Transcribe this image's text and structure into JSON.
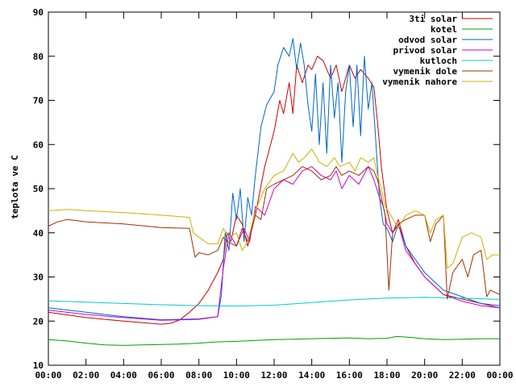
{
  "chart_data": {
    "type": "line",
    "title": "",
    "xlabel": "",
    "ylabel": "teplota ve C",
    "ylim": [
      10,
      90
    ],
    "yticks": [
      10,
      20,
      30,
      40,
      50,
      60,
      70,
      80,
      90
    ],
    "xlim": [
      0,
      24
    ],
    "xticks": [
      {
        "h": 0,
        "label": "00:00"
      },
      {
        "h": 2,
        "label": "02:00"
      },
      {
        "h": 4,
        "label": "04:00"
      },
      {
        "h": 6,
        "label": "06:00"
      },
      {
        "h": 8,
        "label": "08:00"
      },
      {
        "h": 10,
        "label": "10:00"
      },
      {
        "h": 12,
        "label": "12:00"
      },
      {
        "h": 14,
        "label": "14:00"
      },
      {
        "h": 16,
        "label": "16:00"
      },
      {
        "h": 18,
        "label": "18:00"
      },
      {
        "h": 20,
        "label": "20:00"
      },
      {
        "h": 22,
        "label": "22:00"
      },
      {
        "h": 24,
        "label": "00:00"
      }
    ],
    "grid": false,
    "legend_position": "top-right",
    "series": [
      {
        "name": "3ti solar",
        "color": "#cc0000",
        "points": [
          [
            0,
            22
          ],
          [
            2,
            20.8
          ],
          [
            4,
            20
          ],
          [
            6,
            19.3
          ],
          [
            6.5,
            19.5
          ],
          [
            7,
            20.3
          ],
          [
            7.5,
            22
          ],
          [
            8,
            24
          ],
          [
            8.5,
            27
          ],
          [
            9,
            31
          ],
          [
            9.3,
            34
          ],
          [
            9.5,
            40
          ],
          [
            9.7,
            38
          ],
          [
            10,
            44
          ],
          [
            10.3,
            42
          ],
          [
            10.6,
            37
          ],
          [
            11,
            44
          ],
          [
            11.5,
            55
          ],
          [
            12,
            63
          ],
          [
            12.3,
            70
          ],
          [
            12.5,
            67
          ],
          [
            12.8,
            74
          ],
          [
            13,
            67
          ],
          [
            13.2,
            78
          ],
          [
            13.5,
            74
          ],
          [
            13.8,
            78
          ],
          [
            14,
            77
          ],
          [
            14.3,
            80
          ],
          [
            14.6,
            79
          ],
          [
            15,
            75
          ],
          [
            15.3,
            78
          ],
          [
            15.6,
            72
          ],
          [
            16,
            78
          ],
          [
            16.3,
            75
          ],
          [
            16.6,
            77
          ],
          [
            17,
            75
          ],
          [
            17.3,
            73
          ],
          [
            17.5,
            65
          ],
          [
            17.7,
            55
          ],
          [
            18,
            45
          ],
          [
            18.3,
            40
          ],
          [
            18.6,
            43
          ],
          [
            19,
            37
          ],
          [
            19.5,
            33
          ],
          [
            20,
            30
          ],
          [
            20.5,
            28
          ],
          [
            21,
            26
          ],
          [
            22,
            25
          ],
          [
            23,
            24
          ],
          [
            24,
            23
          ]
        ]
      },
      {
        "name": "kotel",
        "color": "#00a000",
        "points": [
          [
            0,
            15.8
          ],
          [
            1,
            15.5
          ],
          [
            2,
            15
          ],
          [
            3,
            14.6
          ],
          [
            4,
            14.5
          ],
          [
            5,
            14.6
          ],
          [
            6,
            14.7
          ],
          [
            7,
            14.8
          ],
          [
            8,
            15
          ],
          [
            9,
            15.3
          ],
          [
            10,
            15.4
          ],
          [
            11,
            15.6
          ],
          [
            12,
            15.8
          ],
          [
            13,
            15.9
          ],
          [
            14,
            16
          ],
          [
            15,
            16.1
          ],
          [
            16,
            16.2
          ],
          [
            17,
            16
          ],
          [
            18,
            16.1
          ],
          [
            18.5,
            16.5
          ],
          [
            19,
            16.4
          ],
          [
            20,
            16
          ],
          [
            21,
            15.8
          ],
          [
            22,
            15.9
          ],
          [
            23,
            16
          ],
          [
            24,
            16
          ]
        ]
      },
      {
        "name": "odvod solar",
        "color": "#0066cc",
        "points": [
          [
            0,
            23
          ],
          [
            2,
            22
          ],
          [
            4,
            21
          ],
          [
            6,
            20.3
          ],
          [
            8,
            20.5
          ],
          [
            9,
            21
          ],
          [
            9.2,
            26
          ],
          [
            9.4,
            40
          ],
          [
            9.6,
            36
          ],
          [
            9.8,
            49
          ],
          [
            10,
            43
          ],
          [
            10.2,
            50
          ],
          [
            10.4,
            38
          ],
          [
            10.6,
            48
          ],
          [
            10.8,
            44
          ],
          [
            11,
            53
          ],
          [
            11.3,
            64
          ],
          [
            11.6,
            69
          ],
          [
            12,
            72
          ],
          [
            12.2,
            78
          ],
          [
            12.5,
            82
          ],
          [
            12.8,
            80
          ],
          [
            13,
            84
          ],
          [
            13.2,
            77
          ],
          [
            13.4,
            83
          ],
          [
            13.6,
            78
          ],
          [
            13.8,
            69
          ],
          [
            14,
            63
          ],
          [
            14.2,
            76
          ],
          [
            14.4,
            60
          ],
          [
            14.6,
            74
          ],
          [
            14.8,
            58
          ],
          [
            15,
            78
          ],
          [
            15.2,
            66
          ],
          [
            15.4,
            74
          ],
          [
            15.6,
            56
          ],
          [
            15.8,
            72
          ],
          [
            16,
            78
          ],
          [
            16.2,
            64
          ],
          [
            16.4,
            78
          ],
          [
            16.6,
            62
          ],
          [
            16.8,
            80
          ],
          [
            17,
            68
          ],
          [
            17.2,
            74
          ],
          [
            17.4,
            61
          ],
          [
            17.6,
            48
          ],
          [
            17.8,
            42
          ],
          [
            18,
            41
          ],
          [
            18.3,
            38
          ],
          [
            18.6,
            42
          ],
          [
            19,
            37
          ],
          [
            19.5,
            34
          ],
          [
            20,
            31
          ],
          [
            20.5,
            29
          ],
          [
            21,
            27
          ],
          [
            22,
            25.5
          ],
          [
            23,
            24
          ],
          [
            24,
            23.5
          ]
        ]
      },
      {
        "name": "privod solar",
        "color": "#cc00cc",
        "points": [
          [
            0,
            22.5
          ],
          [
            2,
            21.5
          ],
          [
            4,
            20.8
          ],
          [
            6,
            20.2
          ],
          [
            8,
            20.4
          ],
          [
            9,
            21
          ],
          [
            9.3,
            32
          ],
          [
            9.6,
            40
          ],
          [
            10,
            37
          ],
          [
            10.4,
            41
          ],
          [
            10.7,
            38
          ],
          [
            11,
            46
          ],
          [
            11.5,
            44
          ],
          [
            12,
            50
          ],
          [
            12.5,
            52
          ],
          [
            13,
            51
          ],
          [
            13.5,
            54
          ],
          [
            14,
            55
          ],
          [
            14.5,
            53
          ],
          [
            15,
            52
          ],
          [
            15.3,
            54
          ],
          [
            15.6,
            50
          ],
          [
            16,
            53
          ],
          [
            16.5,
            51
          ],
          [
            17,
            55
          ],
          [
            17.3,
            52
          ],
          [
            17.6,
            48
          ],
          [
            17.8,
            46
          ],
          [
            18,
            42
          ],
          [
            18.3,
            40
          ],
          [
            18.6,
            42
          ],
          [
            19,
            36
          ],
          [
            19.5,
            33
          ],
          [
            20,
            30
          ],
          [
            20.5,
            28
          ],
          [
            21,
            26
          ],
          [
            22,
            24.5
          ],
          [
            23,
            23.5
          ],
          [
            24,
            23
          ]
        ]
      },
      {
        "name": "kutloch",
        "color": "#00cccc",
        "points": [
          [
            0,
            24.6
          ],
          [
            2,
            24.3
          ],
          [
            4,
            24
          ],
          [
            6,
            23.7
          ],
          [
            8,
            23.5
          ],
          [
            10,
            23.4
          ],
          [
            12,
            23.6
          ],
          [
            14,
            24.2
          ],
          [
            16,
            24.8
          ],
          [
            18,
            25.2
          ],
          [
            19,
            25.3
          ],
          [
            20,
            25.4
          ],
          [
            21,
            25.3
          ],
          [
            22,
            25.2
          ],
          [
            24,
            24.9
          ]
        ]
      },
      {
        "name": "vymenik dole",
        "color": "#a03000",
        "points": [
          [
            0,
            41.5
          ],
          [
            0.5,
            42.5
          ],
          [
            1,
            43
          ],
          [
            2,
            42.5
          ],
          [
            4,
            42
          ],
          [
            6,
            41.2
          ],
          [
            7.5,
            41
          ],
          [
            7.8,
            34.5
          ],
          [
            8,
            35.5
          ],
          [
            8.5,
            35
          ],
          [
            9,
            36
          ],
          [
            9.3,
            39
          ],
          [
            9.5,
            38
          ],
          [
            10,
            37
          ],
          [
            10.3,
            41
          ],
          [
            10.6,
            38
          ],
          [
            11,
            44
          ],
          [
            11.3,
            43
          ],
          [
            11.6,
            50
          ],
          [
            12,
            51
          ],
          [
            12.5,
            52
          ],
          [
            13,
            53
          ],
          [
            13.5,
            55
          ],
          [
            14,
            54
          ],
          [
            14.5,
            52
          ],
          [
            15,
            53
          ],
          [
            15.3,
            55
          ],
          [
            15.6,
            53
          ],
          [
            16,
            54
          ],
          [
            16.5,
            53
          ],
          [
            17,
            55
          ],
          [
            17.3,
            54
          ],
          [
            17.5,
            52
          ],
          [
            17.7,
            48
          ],
          [
            17.9,
            44
          ],
          [
            18.1,
            27
          ],
          [
            18.3,
            40
          ],
          [
            18.6,
            42
          ],
          [
            19,
            43
          ],
          [
            19.5,
            44
          ],
          [
            20,
            44
          ],
          [
            20.3,
            38
          ],
          [
            20.6,
            42
          ],
          [
            21,
            44
          ],
          [
            21.2,
            25
          ],
          [
            21.5,
            31
          ],
          [
            22,
            34
          ],
          [
            22.3,
            30
          ],
          [
            22.6,
            35
          ],
          [
            23,
            36
          ],
          [
            23.3,
            25.5
          ],
          [
            23.5,
            27
          ],
          [
            24,
            26
          ]
        ]
      },
      {
        "name": "vymenik nahore",
        "color": "#c8b400",
        "points": [
          [
            0,
            45
          ],
          [
            1,
            45.3
          ],
          [
            2,
            45
          ],
          [
            4,
            44.6
          ],
          [
            6,
            44
          ],
          [
            7.5,
            43.5
          ],
          [
            7.7,
            40
          ],
          [
            8,
            39
          ],
          [
            8.5,
            37.5
          ],
          [
            9,
            37.5
          ],
          [
            9.3,
            41
          ],
          [
            9.6,
            39
          ],
          [
            10,
            40
          ],
          [
            10.3,
            36
          ],
          [
            10.6,
            38
          ],
          [
            11,
            45
          ],
          [
            11.5,
            50
          ],
          [
            12,
            53
          ],
          [
            12.5,
            54
          ],
          [
            13,
            58
          ],
          [
            13.3,
            56
          ],
          [
            13.6,
            57
          ],
          [
            14,
            59
          ],
          [
            14.4,
            56
          ],
          [
            14.8,
            55
          ],
          [
            15.2,
            57
          ],
          [
            15.5,
            55
          ],
          [
            16,
            56
          ],
          [
            16.3,
            54
          ],
          [
            16.6,
            57
          ],
          [
            17,
            56
          ],
          [
            17.3,
            57
          ],
          [
            17.5,
            53
          ],
          [
            17.7,
            50
          ],
          [
            17.9,
            46
          ],
          [
            18.2,
            44
          ],
          [
            18.6,
            41
          ],
          [
            19,
            44
          ],
          [
            19.5,
            45
          ],
          [
            20,
            44
          ],
          [
            20.3,
            40
          ],
          [
            20.6,
            43
          ],
          [
            21,
            44
          ],
          [
            21.2,
            32
          ],
          [
            21.5,
            33
          ],
          [
            22,
            39
          ],
          [
            22.5,
            40
          ],
          [
            23,
            39
          ],
          [
            23.3,
            34
          ],
          [
            23.6,
            35
          ],
          [
            24,
            35
          ]
        ]
      }
    ]
  }
}
